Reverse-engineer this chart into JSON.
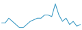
{
  "x": [
    0,
    1,
    2,
    3,
    4,
    5,
    6,
    7,
    8,
    9,
    10,
    11,
    12,
    13,
    14,
    15,
    16,
    17,
    18,
    19,
    20,
    21,
    22
  ],
  "y": [
    4,
    4,
    7,
    5,
    3,
    1,
    1,
    3,
    5,
    6,
    7,
    7,
    9,
    9,
    8,
    16,
    9,
    5,
    7,
    3,
    5,
    2,
    3
  ],
  "line_color": "#3d9bc5",
  "bg_color": "#ffffff",
  "linewidth": 0.8
}
